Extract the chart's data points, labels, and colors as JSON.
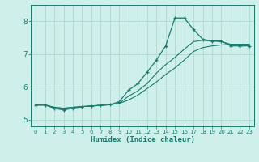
{
  "xlabel": "Humidex (Indice chaleur)",
  "xlim": [
    -0.5,
    23.5
  ],
  "ylim": [
    4.8,
    8.5
  ],
  "yticks": [
    5,
    6,
    7,
    8
  ],
  "xticks": [
    0,
    1,
    2,
    3,
    4,
    5,
    6,
    7,
    8,
    9,
    10,
    11,
    12,
    13,
    14,
    15,
    16,
    17,
    18,
    19,
    20,
    21,
    22,
    23
  ],
  "bg_color": "#cff0ea",
  "grid_color": "#aed8d2",
  "line_color": "#1a7a6e",
  "series": [
    {
      "x": [
        0,
        1,
        2,
        3,
        4,
        5,
        6,
        7,
        8,
        9,
        10,
        11,
        12,
        13,
        14,
        15,
        16,
        17,
        18,
        19,
        20,
        21,
        22,
        23
      ],
      "y": [
        5.45,
        5.45,
        5.35,
        5.3,
        5.35,
        5.4,
        5.42,
        5.44,
        5.46,
        5.55,
        5.9,
        6.1,
        6.45,
        6.82,
        7.25,
        8.1,
        8.1,
        7.75,
        7.45,
        7.4,
        7.4,
        7.25,
        7.25,
        7.25
      ],
      "marker": true
    },
    {
      "x": [
        0,
        1,
        2,
        3,
        4,
        5,
        6,
        7,
        8,
        9,
        10,
        11,
        12,
        13,
        14,
        15,
        16,
        17,
        18,
        19,
        20,
        21,
        22,
        23
      ],
      "y": [
        5.45,
        5.45,
        5.38,
        5.35,
        5.38,
        5.4,
        5.42,
        5.44,
        5.46,
        5.5,
        5.72,
        5.88,
        6.1,
        6.42,
        6.68,
        6.9,
        7.15,
        7.38,
        7.42,
        7.4,
        7.38,
        7.3,
        7.3,
        7.3
      ],
      "marker": false
    },
    {
      "x": [
        0,
        1,
        2,
        3,
        4,
        5,
        6,
        7,
        8,
        9,
        10,
        11,
        12,
        13,
        14,
        15,
        16,
        17,
        18,
        19,
        20,
        21,
        22,
        23
      ],
      "y": [
        5.45,
        5.45,
        5.38,
        5.35,
        5.38,
        5.4,
        5.42,
        5.44,
        5.46,
        5.5,
        5.6,
        5.75,
        5.95,
        6.15,
        6.38,
        6.58,
        6.82,
        7.08,
        7.2,
        7.25,
        7.28,
        7.3,
        7.3,
        7.3
      ],
      "marker": false
    }
  ]
}
